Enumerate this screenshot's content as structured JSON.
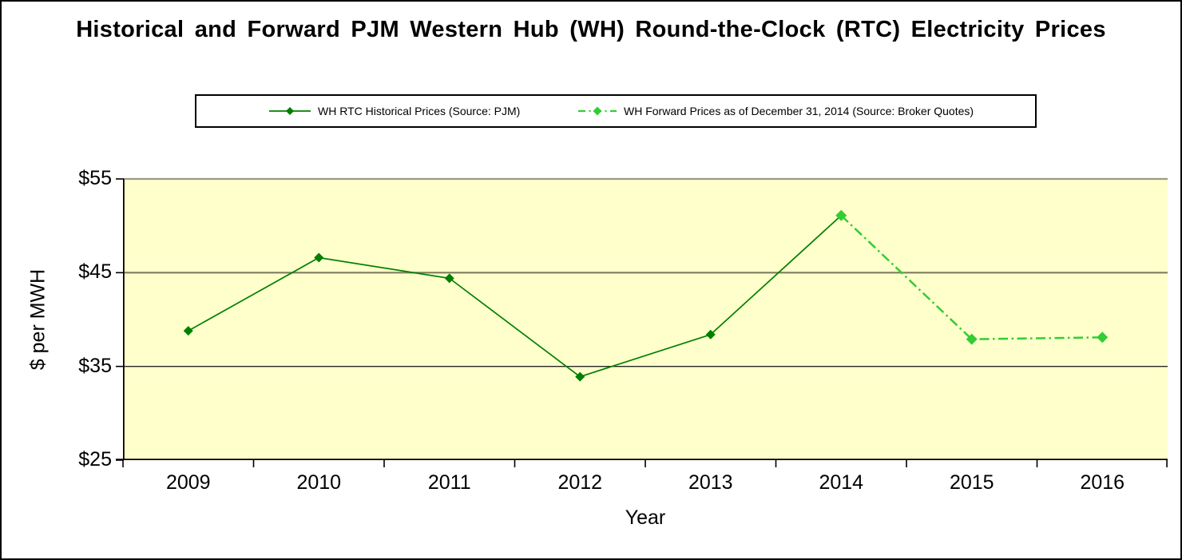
{
  "chart_data": {
    "type": "line",
    "title": "Historical and Forward PJM Western Hub (WH) Round-the-Clock (RTC) Electricity Prices",
    "xlabel": "Year",
    "ylabel": "$ per MWH",
    "categories": [
      "2009",
      "2010",
      "2011",
      "2012",
      "2013",
      "2014",
      "2015",
      "2016"
    ],
    "ylim": [
      25,
      55
    ],
    "y_ticks": [
      55,
      45,
      35,
      25
    ],
    "y_tick_labels": [
      "$55",
      "$45",
      "$35",
      "$25"
    ],
    "grid": true,
    "plot_bg_color": "#FFFFCC",
    "legend_position": "top",
    "series": [
      {
        "name": "WH RTC Historical Prices (Source: PJM)",
        "x": [
          "2009",
          "2010",
          "2011",
          "2012",
          "2013",
          "2014"
        ],
        "values": [
          38.8,
          46.6,
          44.4,
          33.9,
          38.4,
          51.1
        ],
        "color": "#008000",
        "line_style": "solid",
        "marker": "diamond"
      },
      {
        "name": "WH Forward Prices as of December 31, 2014 (Source: Broker Quotes)",
        "x": [
          "2014",
          "2015",
          "2016"
        ],
        "values": [
          51.1,
          37.9,
          38.1
        ],
        "color": "#32CD32",
        "line_style": "dash-dot",
        "marker": "diamond"
      }
    ]
  },
  "legend": {
    "items": [
      {
        "label": "WH RTC Historical Prices (Source: PJM)"
      },
      {
        "label": "WH Forward Prices as of December 31, 2014 (Source: Broker Quotes)"
      }
    ]
  }
}
